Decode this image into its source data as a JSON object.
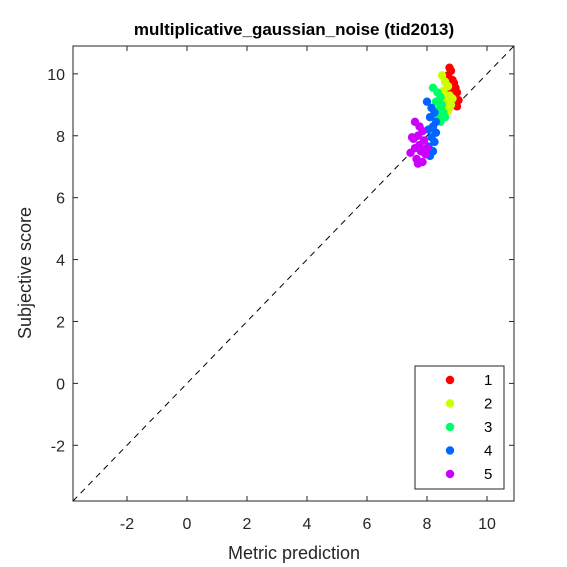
{
  "chart_data": {
    "type": "scatter",
    "title": "multiplicative_gaussian_noise (tid2013)",
    "xlabel": "Metric prediction",
    "ylabel": "Subjective score",
    "xlim": [
      -3.8,
      10.9
    ],
    "ylim": [
      -3.8,
      10.9
    ],
    "xticks": [
      -2,
      0,
      2,
      4,
      6,
      8,
      10
    ],
    "yticks": [
      -2,
      0,
      2,
      4,
      6,
      8,
      10
    ],
    "grid": false,
    "reference_line": "y = x (dashed)",
    "legend_position": "bottom-right",
    "series": [
      {
        "name": "1",
        "color": "#ff0000",
        "points": [
          [
            8.75,
            10.2
          ],
          [
            8.8,
            10.1
          ],
          [
            8.7,
            9.95
          ],
          [
            8.85,
            9.8
          ],
          [
            8.9,
            9.7
          ],
          [
            8.95,
            9.55
          ],
          [
            9.0,
            9.4
          ],
          [
            8.8,
            9.45
          ],
          [
            8.9,
            9.25
          ],
          [
            9.05,
            9.15
          ],
          [
            8.85,
            9.05
          ],
          [
            9.0,
            8.95
          ]
        ]
      },
      {
        "name": "2",
        "color": "#ccff00",
        "points": [
          [
            8.5,
            9.95
          ],
          [
            8.6,
            9.75
          ],
          [
            8.7,
            9.6
          ],
          [
            8.55,
            9.45
          ],
          [
            8.75,
            9.3
          ],
          [
            8.65,
            9.15
          ],
          [
            8.8,
            9.0
          ],
          [
            8.6,
            8.9
          ],
          [
            8.7,
            8.8
          ],
          [
            8.5,
            9.2
          ],
          [
            8.85,
            9.2
          ]
        ]
      },
      {
        "name": "3",
        "color": "#00ff66",
        "points": [
          [
            8.2,
            9.55
          ],
          [
            8.35,
            9.4
          ],
          [
            8.45,
            9.25
          ],
          [
            8.3,
            9.1
          ],
          [
            8.5,
            9.0
          ],
          [
            8.4,
            8.85
          ],
          [
            8.55,
            8.75
          ],
          [
            8.35,
            8.65
          ],
          [
            8.6,
            8.6
          ],
          [
            8.45,
            8.45
          ]
        ]
      },
      {
        "name": "4",
        "color": "#0066ff",
        "points": [
          [
            8.0,
            9.1
          ],
          [
            8.15,
            8.9
          ],
          [
            8.25,
            8.75
          ],
          [
            8.1,
            8.6
          ],
          [
            8.3,
            8.45
          ],
          [
            8.2,
            8.3
          ],
          [
            8.05,
            8.2
          ],
          [
            8.3,
            8.1
          ],
          [
            8.15,
            7.95
          ],
          [
            8.25,
            7.8
          ],
          [
            8.05,
            7.65
          ],
          [
            8.2,
            7.5
          ],
          [
            8.1,
            7.35
          ]
        ]
      },
      {
        "name": "5",
        "color": "#cc00ff",
        "points": [
          [
            7.6,
            8.45
          ],
          [
            7.75,
            8.3
          ],
          [
            7.85,
            8.15
          ],
          [
            7.7,
            8.0
          ],
          [
            7.55,
            7.9
          ],
          [
            7.9,
            7.85
          ],
          [
            7.75,
            7.7
          ],
          [
            7.6,
            7.6
          ],
          [
            7.45,
            7.45
          ],
          [
            7.8,
            7.5
          ],
          [
            7.95,
            7.4
          ],
          [
            7.65,
            7.25
          ],
          [
            7.85,
            7.15
          ],
          [
            7.7,
            7.1
          ],
          [
            8.0,
            7.6
          ],
          [
            7.5,
            7.95
          ]
        ]
      }
    ]
  }
}
